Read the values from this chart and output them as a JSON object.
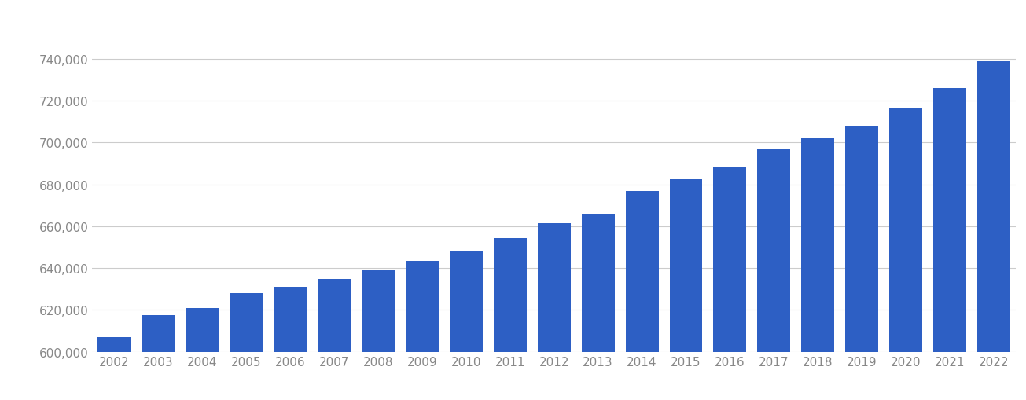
{
  "years": [
    2002,
    2003,
    2004,
    2005,
    2006,
    2007,
    2008,
    2009,
    2010,
    2011,
    2012,
    2013,
    2014,
    2015,
    2016,
    2017,
    2018,
    2019,
    2020,
    2021,
    2022
  ],
  "values": [
    607000,
    617500,
    621000,
    628000,
    631000,
    635000,
    639500,
    643500,
    648000,
    654500,
    661500,
    666000,
    677000,
    682500,
    688500,
    697000,
    702000,
    708000,
    716500,
    726000,
    739000
  ],
  "bar_color": "#2d5fc4",
  "background_color": "#ffffff",
  "grid_color": "#cccccc",
  "tick_color": "#888888",
  "ylim": [
    600000,
    755000
  ],
  "yticks": [
    600000,
    620000,
    640000,
    660000,
    680000,
    700000,
    720000,
    740000
  ],
  "bar_width": 0.75
}
